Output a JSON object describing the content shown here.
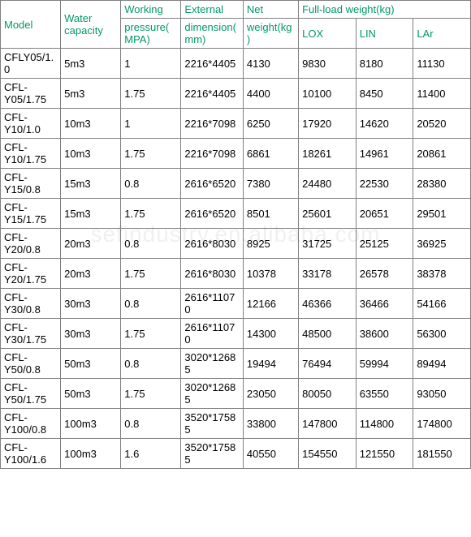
{
  "table": {
    "header_color": "#009966",
    "border_color": "#808080",
    "background_color": "#ffffff",
    "text_color": "#000000",
    "font_size": 13,
    "columns": {
      "model": "Model",
      "water_capacity": "Water capacity",
      "working_group": "Working",
      "working_sub": "pressure(MPA)",
      "external_group": "External",
      "external_sub": "dimension(mm)",
      "net_group": "Net",
      "net_sub": "weight(kg)",
      "fullload_group": "Full-load weight(kg)",
      "lox": "LOX",
      "lin": "LIN",
      "lar": "LAr"
    },
    "rows": [
      {
        "model": "CFLY05/1.0",
        "water": "5m3",
        "press": "1",
        "dim": "2216*4405",
        "net": "4130",
        "lox": "9830",
        "lin": "8180",
        "lar": "11130"
      },
      {
        "model": "CFL-Y05/1.75",
        "water": "5m3",
        "press": "1.75",
        "dim": "2216*4405",
        "net": "4400",
        "lox": "10100",
        "lin": "8450",
        "lar": "11400"
      },
      {
        "model": "CFL-Y10/1.0",
        "water": "10m3",
        "press": "1",
        "dim": "2216*7098",
        "net": "6250",
        "lox": "17920",
        "lin": "14620",
        "lar": "20520"
      },
      {
        "model": "CFL-Y10/1.75",
        "water": "10m3",
        "press": "1.75",
        "dim": "2216*7098",
        "net": "6861",
        "lox": "18261",
        "lin": "14961",
        "lar": "20861"
      },
      {
        "model": "CFL-Y15/0.8",
        "water": "15m3",
        "press": "0.8",
        "dim": "2616*6520",
        "net": "7380",
        "lox": "24480",
        "lin": "22530",
        "lar": "28380"
      },
      {
        "model": "CFL-Y15/1.75",
        "water": "15m3",
        "press": "1.75",
        "dim": "2616*6520",
        "net": "8501",
        "lox": "25601",
        "lin": "20651",
        "lar": "29501"
      },
      {
        "model": "CFL-Y20/0.8",
        "water": "20m3",
        "press": "0.8",
        "dim": "2616*8030",
        "net": "8925",
        "lox": "31725",
        "lin": "25125",
        "lar": "36925"
      },
      {
        "model": "CFL-Y20/1.75",
        "water": "20m3",
        "press": "1.75",
        "dim": "2616*8030",
        "net": "10378",
        "lox": "33178",
        "lin": "26578",
        "lar": "38378"
      },
      {
        "model": "CFL-Y30/0.8",
        "water": "30m3",
        "press": "0.8",
        "dim": "2616*11070",
        "net": "12166",
        "lox": "46366",
        "lin": "36466",
        "lar": "54166"
      },
      {
        "model": "CFL-Y30/1.75",
        "water": "30m3",
        "press": "1.75",
        "dim": "2616*11070",
        "net": "14300",
        "lox": "48500",
        "lin": "38600",
        "lar": "56300"
      },
      {
        "model": "CFL-Y50/0.8",
        "water": "50m3",
        "press": "0.8",
        "dim": "3020*12685",
        "net": "19494",
        "lox": "76494",
        "lin": "59994",
        "lar": "89494"
      },
      {
        "model": "CFL-Y50/1.75",
        "water": "50m3",
        "press": "1.75",
        "dim": "3020*12685",
        "net": "23050",
        "lox": "80050",
        "lin": "63550",
        "lar": "93050"
      },
      {
        "model": "CFL-Y100/0.8",
        "water": "100m3",
        "press": "0.8",
        "dim": "3520*17585",
        "net": "33800",
        "lox": "147800",
        "lin": "114800",
        "lar": "174800"
      },
      {
        "model": "CFL-Y100/1.6",
        "water": "100m3",
        "press": "1.6",
        "dim": "3520*17585",
        "net": "40550",
        "lox": "154550",
        "lin": "121550",
        "lar": "181550"
      }
    ]
  },
  "watermark": "sefindustry.en.alibaba.com"
}
